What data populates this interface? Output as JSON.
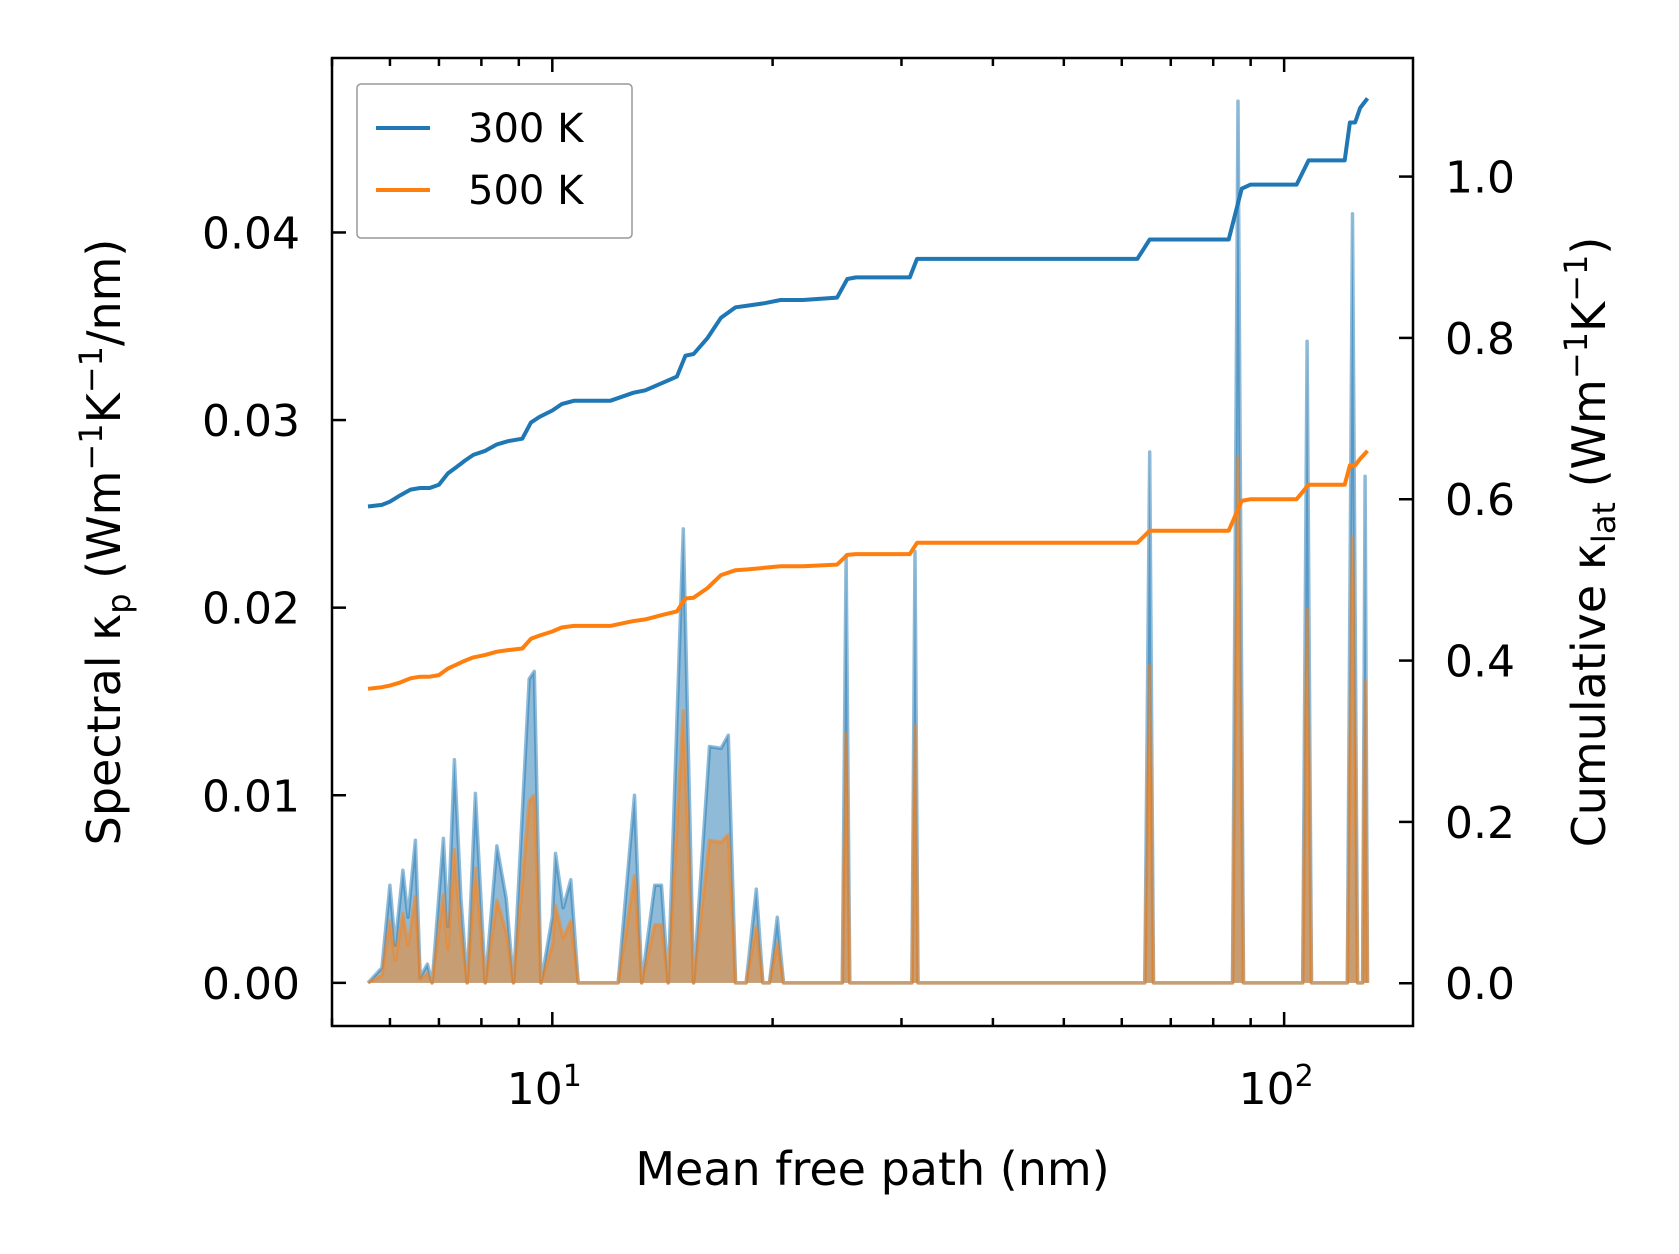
{
  "chart_data": {
    "type": "line",
    "xlabel": "Mean free path (nm)",
    "xscale": "log",
    "xlim": [
      5.0,
      150.0
    ],
    "x_tick_labels": [
      {
        "value": 10,
        "base": "10",
        "exp": "1"
      },
      {
        "value": 100,
        "base": "10",
        "exp": "2"
      }
    ],
    "y_left": {
      "label_parts": [
        "Spectral κ",
        "p",
        " (Wm",
        "−1",
        "K",
        "−1",
        "/nm)"
      ],
      "lim": [
        -0.0023,
        0.0493
      ],
      "ticks": [
        0.0,
        0.01,
        0.02,
        0.03,
        0.04
      ],
      "tick_labels": [
        "0.00",
        "0.01",
        "0.02",
        "0.03",
        "0.04"
      ]
    },
    "y_right": {
      "label_parts": [
        "Cumulative κ",
        "lat",
        " (Wm",
        "−1",
        "K",
        "−1",
        ")"
      ],
      "lim": [
        -0.053,
        1.147
      ],
      "ticks": [
        0.0,
        0.2,
        0.4,
        0.6,
        0.8,
        1.0
      ],
      "tick_labels": [
        "0.0",
        "0.2",
        "0.4",
        "0.6",
        "0.8",
        "1.0"
      ]
    },
    "colors": {
      "300K": "#1f77b4",
      "500K": "#ff7f0e"
    },
    "legend": {
      "position": "top-left",
      "entries": [
        "300 K",
        "500 K"
      ]
    },
    "spectral_300K": {
      "name": "300 K",
      "points": [
        [
          5.6,
          0
        ],
        [
          5.85,
          0.0008
        ],
        [
          6.0,
          0.0052
        ],
        [
          6.1,
          0.002
        ],
        [
          6.25,
          0.006
        ],
        [
          6.35,
          0.0035
        ],
        [
          6.5,
          0.0076
        ],
        [
          6.6,
          0.0003
        ],
        [
          6.75,
          0.001
        ],
        [
          6.85,
          0
        ],
        [
          7.1,
          0.0077
        ],
        [
          7.2,
          0.003
        ],
        [
          7.35,
          0.0119
        ],
        [
          7.5,
          0.0045
        ],
        [
          7.65,
          0.0
        ],
        [
          7.85,
          0.0101
        ],
        [
          8.1,
          0.0
        ],
        [
          8.4,
          0.0073
        ],
        [
          8.65,
          0.0045
        ],
        [
          8.85,
          0
        ],
        [
          9.3,
          0.0162
        ],
        [
          9.45,
          0.0166
        ],
        [
          9.65,
          0
        ],
        [
          10.0,
          0.0035
        ],
        [
          10.1,
          0.0069
        ],
        [
          10.35,
          0.004
        ],
        [
          10.6,
          0.0055
        ],
        [
          10.85,
          0
        ],
        [
          12.3,
          0.0
        ],
        [
          12.95,
          0.01
        ],
        [
          13.25,
          0
        ],
        [
          13.8,
          0.0052
        ],
        [
          14.1,
          0.0052
        ],
        [
          14.4,
          0.0
        ],
        [
          15.1,
          0.0242
        ],
        [
          15.6,
          0.0
        ],
        [
          16.4,
          0.0126
        ],
        [
          17.0,
          0.0125
        ],
        [
          17.4,
          0.0132
        ],
        [
          17.8,
          0.0
        ],
        [
          18.4,
          0.0
        ],
        [
          19.0,
          0.005
        ],
        [
          19.4,
          0.0
        ],
        [
          19.8,
          0.0
        ],
        [
          20.3,
          0.0035
        ],
        [
          20.7,
          0.0
        ],
        [
          24.9,
          0.0
        ],
        [
          25.2,
          0.0228
        ],
        [
          25.5,
          0
        ],
        [
          31.0,
          0
        ],
        [
          31.3,
          0.023
        ],
        [
          31.6,
          0
        ],
        [
          64.5,
          0
        ],
        [
          65.5,
          0.0283
        ],
        [
          66.3,
          0
        ],
        [
          85.0,
          0
        ],
        [
          86.5,
          0.047
        ],
        [
          88.0,
          0
        ],
        [
          106,
          0
        ],
        [
          107.5,
          0.0342
        ],
        [
          109,
          0
        ],
        [
          122,
          0
        ],
        [
          124,
          0.041
        ],
        [
          126,
          0.0
        ],
        [
          128,
          0
        ],
        [
          129,
          0.027
        ],
        [
          130,
          0
        ]
      ]
    },
    "spectral_500K": {
      "name": "500 K",
      "points": [
        [
          5.6,
          0
        ],
        [
          5.85,
          0.0004
        ],
        [
          6.0,
          0.0033
        ],
        [
          6.1,
          0.0012
        ],
        [
          6.25,
          0.0037
        ],
        [
          6.35,
          0.002
        ],
        [
          6.5,
          0.0046
        ],
        [
          6.6,
          0.0002
        ],
        [
          6.75,
          0.0005
        ],
        [
          6.85,
          0
        ],
        [
          7.1,
          0.0047
        ],
        [
          7.2,
          0.0018
        ],
        [
          7.35,
          0.0071
        ],
        [
          7.5,
          0.0027
        ],
        [
          7.65,
          0.0
        ],
        [
          7.85,
          0.0061
        ],
        [
          8.1,
          0.0
        ],
        [
          8.4,
          0.0044
        ],
        [
          8.65,
          0.0027
        ],
        [
          8.85,
          0
        ],
        [
          9.3,
          0.0097
        ],
        [
          9.45,
          0.01
        ],
        [
          9.65,
          0
        ],
        [
          10.0,
          0.002
        ],
        [
          10.1,
          0.0041
        ],
        [
          10.35,
          0.0024
        ],
        [
          10.6,
          0.0033
        ],
        [
          10.85,
          0
        ],
        [
          12.3,
          0.0
        ],
        [
          12.95,
          0.0057
        ],
        [
          13.25,
          0
        ],
        [
          13.8,
          0.0031
        ],
        [
          14.1,
          0.0031
        ],
        [
          14.4,
          0.0
        ],
        [
          15.1,
          0.0145
        ],
        [
          15.6,
          0.0
        ],
        [
          16.4,
          0.0076
        ],
        [
          17.0,
          0.0075
        ],
        [
          17.4,
          0.0079
        ],
        [
          17.8,
          0.0
        ],
        [
          18.4,
          0.0
        ],
        [
          19.0,
          0.003
        ],
        [
          19.4,
          0.0
        ],
        [
          19.8,
          0.0
        ],
        [
          20.3,
          0.0021
        ],
        [
          20.7,
          0.0
        ],
        [
          24.9,
          0.0
        ],
        [
          25.2,
          0.0133
        ],
        [
          25.5,
          0
        ],
        [
          31.0,
          0
        ],
        [
          31.3,
          0.0137
        ],
        [
          31.6,
          0
        ],
        [
          64.5,
          0
        ],
        [
          65.5,
          0.0169
        ],
        [
          66.3,
          0
        ],
        [
          85.0,
          0
        ],
        [
          86.5,
          0.028
        ],
        [
          88.0,
          0
        ],
        [
          106,
          0
        ],
        [
          107.5,
          0.0199
        ],
        [
          109,
          0
        ],
        [
          122,
          0
        ],
        [
          124,
          0.0238
        ],
        [
          126,
          0.0
        ],
        [
          128,
          0
        ],
        [
          129,
          0.0161
        ],
        [
          130,
          0
        ]
      ]
    },
    "cumulative_300K": {
      "name": "300 K",
      "points": [
        [
          5.6,
          0.591
        ],
        [
          5.85,
          0.593
        ],
        [
          6.0,
          0.597
        ],
        [
          6.2,
          0.605
        ],
        [
          6.4,
          0.612
        ],
        [
          6.6,
          0.614
        ],
        [
          6.8,
          0.614
        ],
        [
          7.0,
          0.618
        ],
        [
          7.2,
          0.632
        ],
        [
          7.4,
          0.64
        ],
        [
          7.6,
          0.648
        ],
        [
          7.8,
          0.655
        ],
        [
          8.1,
          0.66
        ],
        [
          8.4,
          0.668
        ],
        [
          8.7,
          0.672
        ],
        [
          9.1,
          0.675
        ],
        [
          9.35,
          0.695
        ],
        [
          9.6,
          0.702
        ],
        [
          10.0,
          0.71
        ],
        [
          10.3,
          0.718
        ],
        [
          10.7,
          0.722
        ],
        [
          12.0,
          0.722
        ],
        [
          12.9,
          0.732
        ],
        [
          13.4,
          0.735
        ],
        [
          14.2,
          0.745
        ],
        [
          14.8,
          0.752
        ],
        [
          15.2,
          0.778
        ],
        [
          15.6,
          0.78
        ],
        [
          16.3,
          0.8
        ],
        [
          17.0,
          0.825
        ],
        [
          17.8,
          0.838
        ],
        [
          18.5,
          0.84
        ],
        [
          19.5,
          0.843
        ],
        [
          20.5,
          0.847
        ],
        [
          22.0,
          0.847
        ],
        [
          24.5,
          0.85
        ],
        [
          25.3,
          0.873
        ],
        [
          26.0,
          0.875
        ],
        [
          30.8,
          0.875
        ],
        [
          31.5,
          0.898
        ],
        [
          33.0,
          0.898
        ],
        [
          63.0,
          0.898
        ],
        [
          65.5,
          0.922
        ],
        [
          67.0,
          0.922
        ],
        [
          84.0,
          0.922
        ],
        [
          87.5,
          0.985
        ],
        [
          90.0,
          0.99
        ],
        [
          104,
          0.99
        ],
        [
          108,
          1.02
        ],
        [
          112,
          1.02
        ],
        [
          121,
          1.02
        ],
        [
          123,
          1.067
        ],
        [
          125,
          1.067
        ],
        [
          127,
          1.085
        ],
        [
          130,
          1.097
        ]
      ]
    },
    "cumulative_500K": {
      "name": "500 K",
      "points": [
        [
          5.6,
          0.365
        ],
        [
          5.85,
          0.367
        ],
        [
          6.0,
          0.369
        ],
        [
          6.2,
          0.373
        ],
        [
          6.4,
          0.378
        ],
        [
          6.6,
          0.38
        ],
        [
          6.8,
          0.38
        ],
        [
          7.0,
          0.382
        ],
        [
          7.2,
          0.39
        ],
        [
          7.4,
          0.395
        ],
        [
          7.6,
          0.4
        ],
        [
          7.8,
          0.404
        ],
        [
          8.1,
          0.407
        ],
        [
          8.4,
          0.411
        ],
        [
          8.7,
          0.413
        ],
        [
          9.1,
          0.415
        ],
        [
          9.35,
          0.427
        ],
        [
          9.6,
          0.431
        ],
        [
          10.0,
          0.436
        ],
        [
          10.3,
          0.441
        ],
        [
          10.7,
          0.443
        ],
        [
          12.0,
          0.443
        ],
        [
          12.9,
          0.449
        ],
        [
          13.4,
          0.451
        ],
        [
          14.2,
          0.457
        ],
        [
          14.8,
          0.461
        ],
        [
          15.2,
          0.477
        ],
        [
          15.6,
          0.478
        ],
        [
          16.3,
          0.49
        ],
        [
          17.0,
          0.506
        ],
        [
          17.8,
          0.512
        ],
        [
          18.5,
          0.513
        ],
        [
          19.5,
          0.515
        ],
        [
          20.5,
          0.517
        ],
        [
          22.0,
          0.517
        ],
        [
          24.5,
          0.519
        ],
        [
          25.3,
          0.531
        ],
        [
          26.0,
          0.532
        ],
        [
          30.8,
          0.532
        ],
        [
          31.5,
          0.546
        ],
        [
          33.0,
          0.546
        ],
        [
          63.0,
          0.546
        ],
        [
          65.5,
          0.561
        ],
        [
          67.0,
          0.561
        ],
        [
          84.0,
          0.561
        ],
        [
          87.5,
          0.598
        ],
        [
          90.0,
          0.6
        ],
        [
          104,
          0.6
        ],
        [
          108,
          0.618
        ],
        [
          112,
          0.618
        ],
        [
          121,
          0.618
        ],
        [
          123,
          0.642
        ],
        [
          125,
          0.642
        ],
        [
          127,
          0.65
        ],
        [
          130,
          0.66
        ]
      ]
    }
  }
}
